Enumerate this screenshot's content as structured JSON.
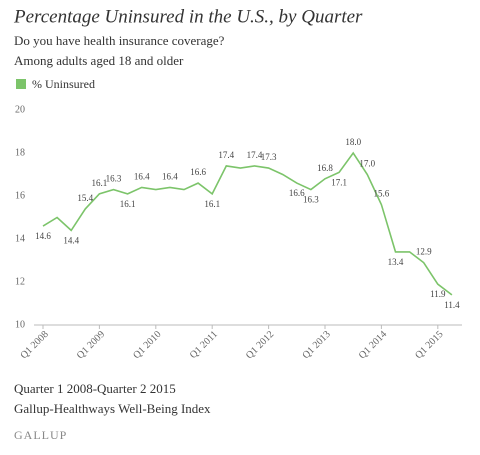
{
  "chart_data": {
    "type": "line",
    "title": "Percentage Uninsured in the U.S., by Quarter",
    "subtitle": [
      "Do you have health insurance coverage?",
      "Among adults aged 18 and older"
    ],
    "categories": [
      "Q1 2008",
      null,
      null,
      null,
      "Q1 2009",
      null,
      null,
      null,
      "Q1 2010",
      null,
      null,
      null,
      "Q1 2011",
      null,
      null,
      null,
      "Q1 2012",
      null,
      null,
      null,
      "Q1 2013",
      null,
      null,
      null,
      "Q1 2014",
      null,
      null,
      null,
      "Q1 2015",
      null
    ],
    "series": [
      {
        "name": "% Uninsured",
        "color": "#7cc46a",
        "values": [
          14.6,
          15.0,
          14.4,
          15.4,
          16.1,
          16.3,
          16.1,
          16.4,
          16.3,
          16.4,
          16.3,
          16.6,
          16.1,
          17.4,
          17.3,
          17.4,
          17.3,
          17.0,
          16.6,
          16.3,
          16.8,
          17.1,
          18.0,
          17.0,
          15.6,
          13.4,
          13.4,
          12.9,
          11.9,
          11.4
        ],
        "value_labels": [
          "14.6",
          null,
          "14.4",
          "15.4",
          "16.1",
          "16.3",
          "16.1",
          "16.4",
          null,
          "16.4",
          null,
          "16.6",
          "16.1",
          "17.4",
          null,
          "17.4",
          "17.3",
          null,
          "16.6",
          "16.3",
          "16.8",
          "17.1",
          "18.0",
          "17.0",
          "15.6",
          "13.4",
          null,
          "12.9",
          "11.9",
          "11.4"
        ]
      }
    ],
    "ylim": [
      10,
      20
    ],
    "yticks": [
      10,
      12,
      14,
      16,
      18,
      20
    ],
    "grid": false,
    "footer": [
      "Quarter 1 2008-Quarter 2 2015",
      "Gallup-Healthways Well-Being Index"
    ],
    "source": "GALLUP"
  }
}
